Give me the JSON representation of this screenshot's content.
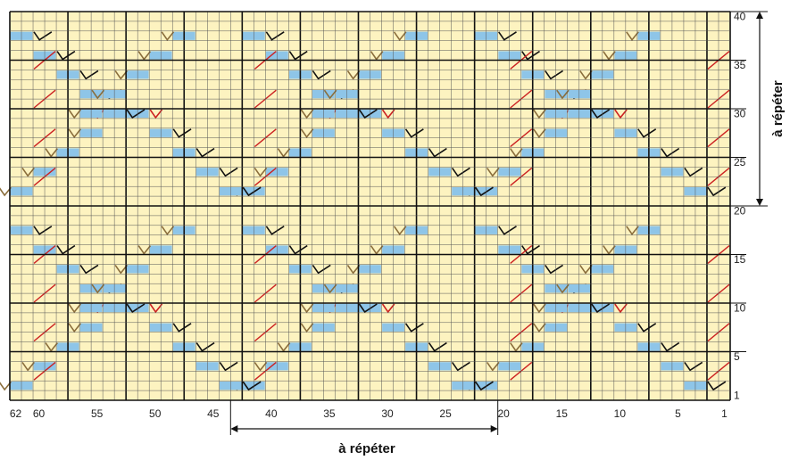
{
  "grid": {
    "columns": 62,
    "rows": 40,
    "background": "#fdf3c0",
    "fine_line": "#555555",
    "major_line": "#111111",
    "major_every": 5
  },
  "row_numbers": [
    "1",
    "5",
    "10",
    "15",
    "20",
    "25",
    "30",
    "35",
    "40"
  ],
  "column_numbers": [
    "62",
    "60",
    "55",
    "50",
    "45",
    "40",
    "35",
    "30",
    "25",
    "20",
    "15",
    "10",
    "5",
    "1"
  ],
  "repeat_label_bottom": "à répéter",
  "repeat_label_right": "à répéter",
  "repeat": {
    "columns_from": 43,
    "columns_to": 21,
    "rows_from": 21,
    "rows_to": 40
  },
  "colors": {
    "k2tog": "#111111",
    "ssk": "#8a6d3b",
    "twisted": "#cc2222",
    "yo": "#8ec5e8"
  },
  "legend": [
    {
      "icon": "k2tog-icon"
    },
    {
      "icon": "ssk-icon"
    },
    {
      "icon": "twisted-stitch-icon"
    },
    {
      "icon": "yarn-over-icon"
    }
  ]
}
